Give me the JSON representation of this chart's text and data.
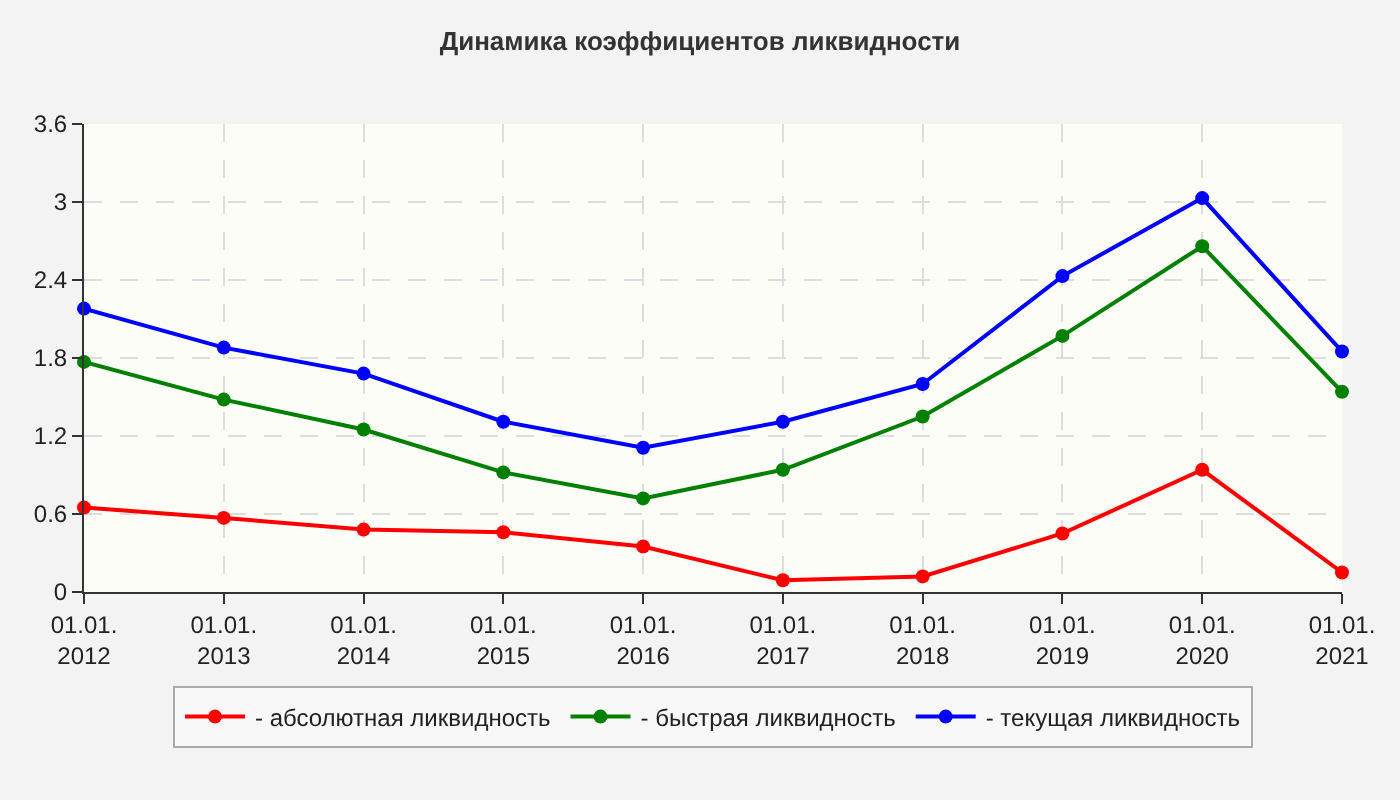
{
  "chart_data": {
    "type": "line",
    "title": "Динамика коэффициентов ликвидности",
    "categories": [
      "01.01.\n2012",
      "01.01.\n2013",
      "01.01.\n2014",
      "01.01.\n2015",
      "01.01.\n2016",
      "01.01.\n2017",
      "01.01.\n2018",
      "01.01.\n2019",
      "01.01.\n2020",
      "01.01.\n2021"
    ],
    "series": [
      {
        "name": "- абсолютная ликвидность",
        "color": "#ff0000",
        "values": [
          0.65,
          0.57,
          0.48,
          0.46,
          0.35,
          0.09,
          0.12,
          0.45,
          0.94,
          0.15
        ]
      },
      {
        "name": "- быстрая ликвидность",
        "color": "#008000",
        "values": [
          1.77,
          1.48,
          1.25,
          0.92,
          0.72,
          0.94,
          1.35,
          1.97,
          2.66,
          1.54
        ]
      },
      {
        "name": "- текущая ликвидность",
        "color": "#0000ff",
        "values": [
          2.18,
          1.88,
          1.68,
          1.31,
          1.11,
          1.31,
          1.6,
          2.43,
          3.03,
          1.85
        ]
      }
    ],
    "ylim": [
      0,
      3.6
    ],
    "yticks": [
      0,
      0.6,
      1.2,
      1.8,
      2.4,
      3,
      3.6
    ],
    "grid": true,
    "legend": "bottom",
    "marker": "circle",
    "line_style": "solid"
  }
}
